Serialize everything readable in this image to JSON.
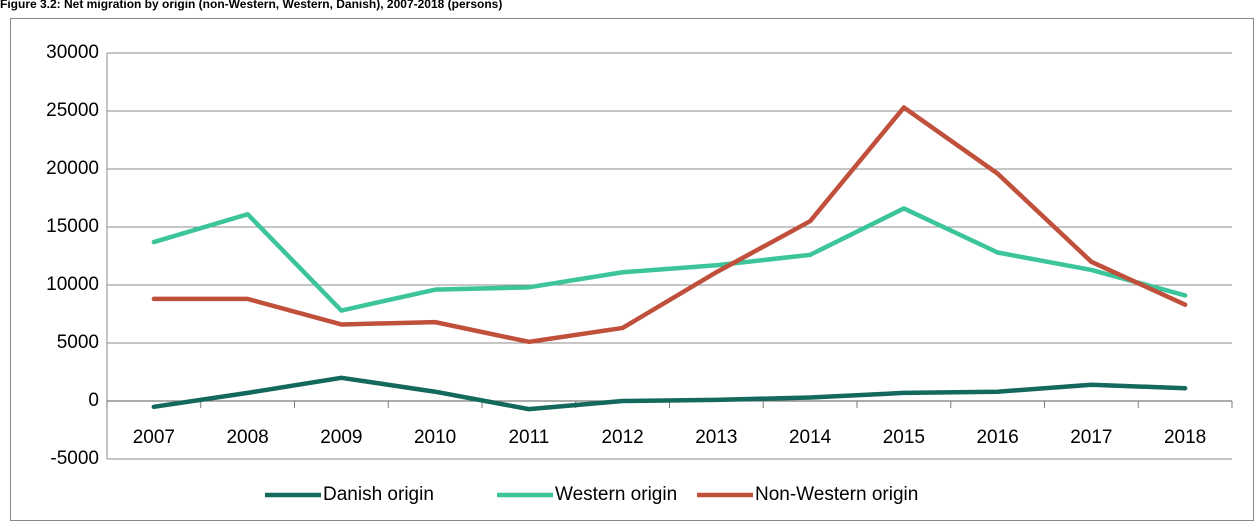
{
  "chart_data": {
    "type": "line",
    "title": "Figure 3.2: Net migration by origin (non-Western, Western, Danish), 2007-2018 (persons)",
    "categories": [
      "2007",
      "2008",
      "2009",
      "2010",
      "2011",
      "2012",
      "2013",
      "2014",
      "2015",
      "2016",
      "2017",
      "2018"
    ],
    "series": [
      {
        "name": "Danish origin",
        "color": "#13695b",
        "values": [
          -500,
          700,
          2000,
          800,
          -700,
          0,
          100,
          300,
          700,
          800,
          1400,
          1100
        ]
      },
      {
        "name": "Western origin",
        "color": "#3cc49b",
        "values": [
          13700,
          16100,
          7800,
          9600,
          9800,
          11100,
          11700,
          12600,
          16600,
          12800,
          11300,
          9100
        ]
      },
      {
        "name": "Non-Western origin",
        "color": "#c0503b",
        "values": [
          8800,
          8800,
          6600,
          6800,
          5100,
          6300,
          11100,
          15500,
          25300,
          19600,
          12000,
          8300
        ]
      }
    ],
    "ylim": [
      -5000,
      30000
    ],
    "yticks": [
      -5000,
      0,
      5000,
      10000,
      15000,
      20000,
      25000,
      30000
    ],
    "grid": true,
    "legend": "bottom"
  }
}
